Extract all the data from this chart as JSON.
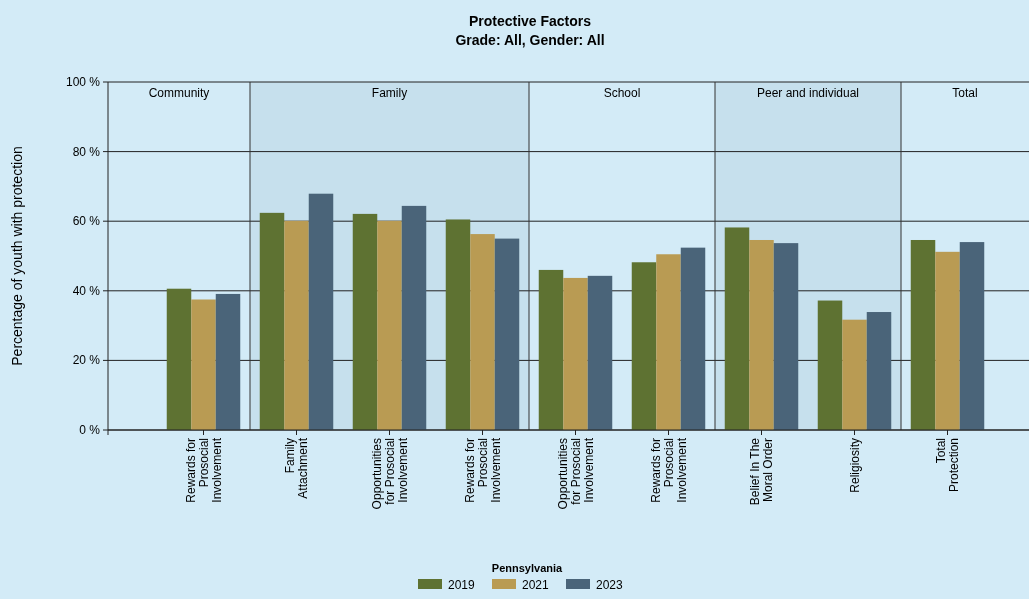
{
  "chart_data": {
    "type": "bar",
    "title": "Protective Factors",
    "subtitle": "Grade: All, Gender: All",
    "ylabel": "Percentage of youth with protection",
    "legend_title": "Pennsylvania",
    "categories": [
      "Rewards for Prosocial Involvement",
      "Family Attachment",
      "Opportunities for Prosocial Involvement",
      "Rewards for Prosocial Involvement",
      "Opportunities for Prosocial Involvement",
      "Rewards for Prosocial Involvement",
      "Belief In The Moral Order",
      "Religiosity",
      "Total Protection"
    ],
    "series": [
      {
        "name": "2019",
        "color": "#5e7232",
        "values": [
          40.6,
          62.4,
          62.1,
          60.5,
          46.0,
          48.2,
          58.2,
          37.2,
          54.6
        ]
      },
      {
        "name": "2021",
        "color": "#b99b53",
        "values": [
          37.5,
          60.1,
          60.1,
          56.3,
          43.7,
          50.5,
          54.6,
          31.7,
          51.2
        ]
      },
      {
        "name": "2023",
        "color": "#4a6479",
        "values": [
          39.1,
          67.9,
          64.4,
          55.0,
          44.3,
          52.4,
          53.7,
          33.9,
          54.0
        ]
      }
    ],
    "ylim": [
      0,
      100
    ],
    "yticks": [
      {
        "value": 0,
        "label": "0 %"
      },
      {
        "value": 20,
        "label": "20 %"
      },
      {
        "value": 40,
        "label": "40 %"
      },
      {
        "value": 60,
        "label": "60 %"
      },
      {
        "value": 80,
        "label": "80 %"
      },
      {
        "value": 100,
        "label": "100 %"
      }
    ],
    "annotations": [
      "Community",
      "Family",
      "School",
      "Peer and individual",
      "Total"
    ],
    "grid": "y",
    "legend": "bottom"
  }
}
